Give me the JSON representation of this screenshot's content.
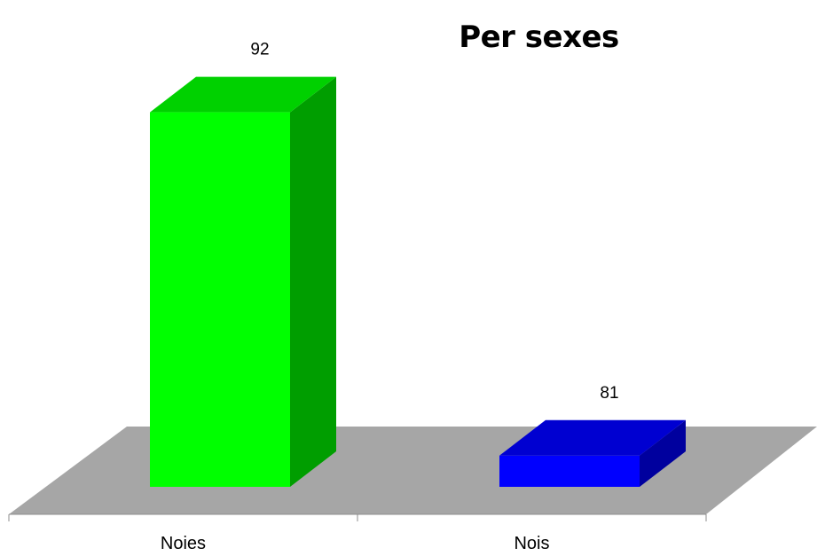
{
  "chart_data": {
    "type": "bar",
    "title": "Per sexes",
    "categories": [
      "Noies",
      "Nois"
    ],
    "values": [
      92,
      81
    ],
    "colors": [
      "#00ff00",
      "#0000ff"
    ],
    "xlabel": "",
    "ylabel": "",
    "ylim": [
      80,
      93
    ],
    "grid": false,
    "legend": "none",
    "style": "3d-column"
  }
}
